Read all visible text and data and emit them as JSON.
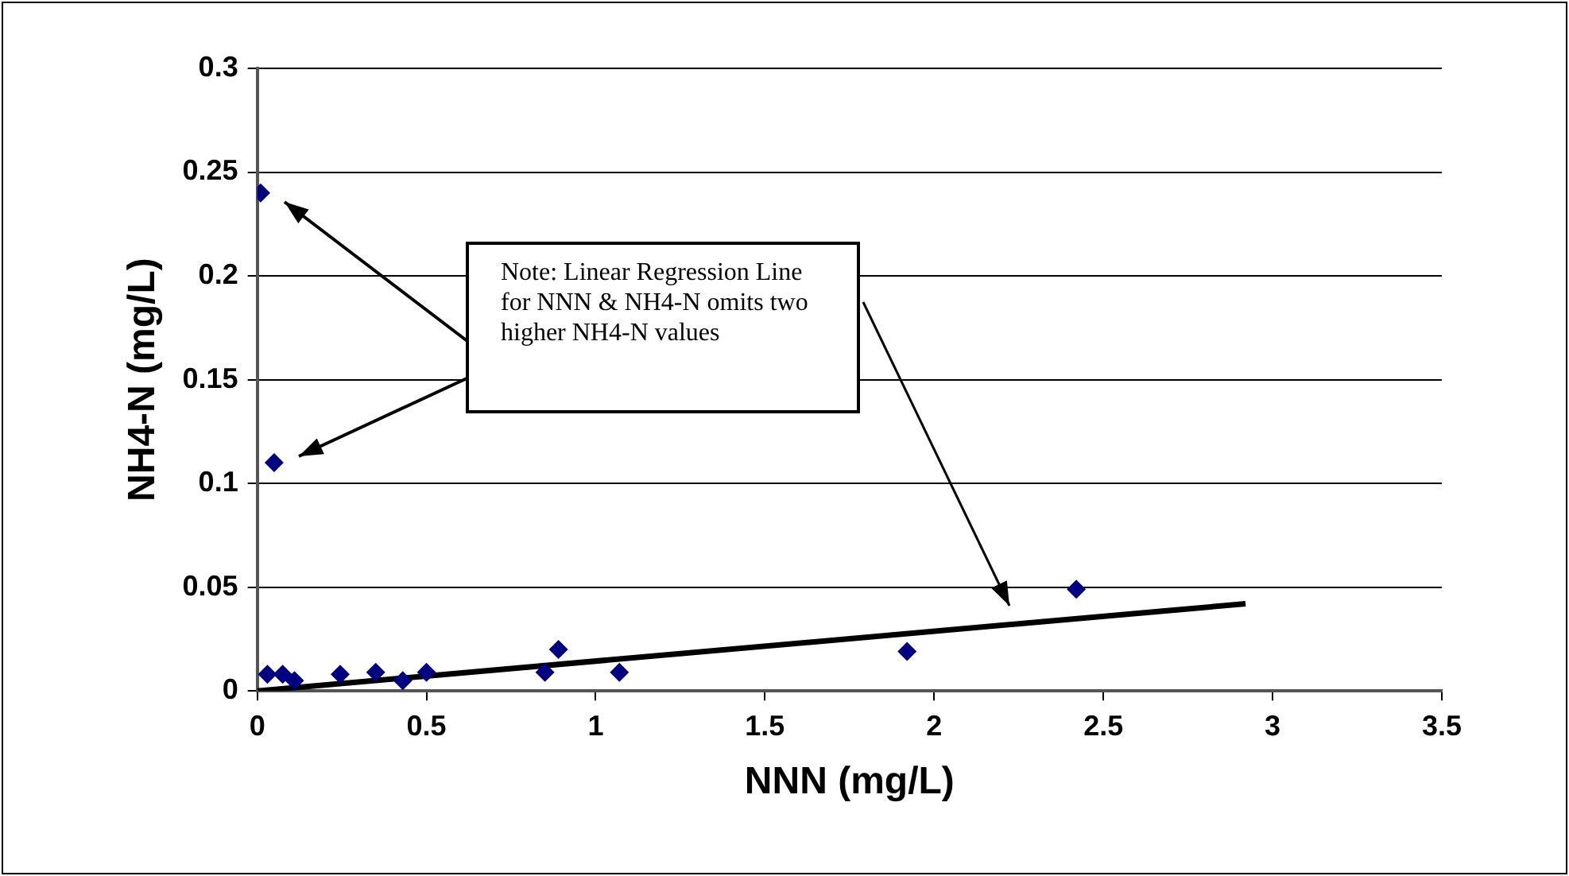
{
  "chart_data": {
    "type": "scatter",
    "xlabel": "NNN (mg/L)",
    "ylabel": "NH4-N (mg/L)",
    "xlim": [
      0,
      3.5
    ],
    "xticks": [
      0,
      0.5,
      1,
      1.5,
      2,
      2.5,
      3,
      3.5
    ],
    "ylim": [
      0,
      0.3
    ],
    "yticks": [
      0,
      0.05,
      0.1,
      0.15,
      0.2,
      0.25,
      0.3
    ],
    "grid": "y",
    "legend": false,
    "marker": "diamond",
    "series": [
      {
        "color": "#000080",
        "x": [
          0.01,
          0.05,
          0.03,
          0.075,
          0.11,
          0.245,
          0.35,
          0.43,
          0.5,
          0.85,
          0.89,
          1.07,
          1.92,
          2.42
        ],
        "values": [
          0.24,
          0.11,
          0.008,
          0.008,
          0.005,
          0.008,
          0.009,
          0.005,
          0.009,
          0.009,
          0.02,
          0.009,
          0.019,
          0.049
        ]
      },
      {
        "type": "line",
        "color": "#000000",
        "marker": "none",
        "x": [
          0,
          2.92
        ],
        "values": [
          0,
          0.042
        ]
      }
    ],
    "annotations": [
      "Note: Linear Regression Line for NNN & NH4-N omits two higher NH4-N values"
    ]
  }
}
